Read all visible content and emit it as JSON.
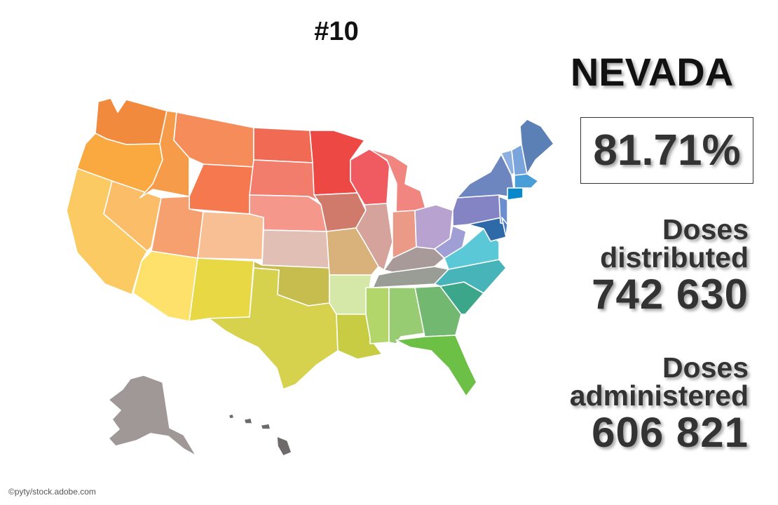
{
  "header": {
    "rank": "#10"
  },
  "state": {
    "name": "NEVADA",
    "percent": "81.71%"
  },
  "distributed": {
    "label_line1": "Doses",
    "label_line2": "distributed",
    "value": "742 630"
  },
  "administered": {
    "label_line1": "Doses",
    "label_line2": "administered",
    "value": "606 821"
  },
  "credit": "©pyty/stock.adobe.com"
}
